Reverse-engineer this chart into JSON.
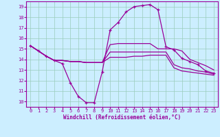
{
  "xlabel": "Windchill (Refroidissement éolien,°C)",
  "background_color": "#cceeff",
  "line_color": "#990099",
  "grid_color": "#99ccbb",
  "ylim": [
    9.5,
    19.5
  ],
  "xlim": [
    -0.5,
    23.5
  ],
  "yticks": [
    10,
    11,
    12,
    13,
    14,
    15,
    16,
    17,
    18,
    19
  ],
  "xticks": [
    0,
    1,
    2,
    3,
    4,
    5,
    6,
    7,
    8,
    9,
    10,
    11,
    12,
    13,
    14,
    15,
    16,
    17,
    18,
    19,
    20,
    21,
    22,
    23
  ],
  "series": [
    {
      "x": [
        0,
        1,
        2,
        3,
        4,
        5,
        6,
        7,
        8,
        9,
        10,
        11,
        12,
        13,
        14,
        15,
        16,
        17,
        18,
        19,
        20,
        21,
        22,
        23
      ],
      "y": [
        15.3,
        14.8,
        14.3,
        13.9,
        13.9,
        13.8,
        13.8,
        13.7,
        13.7,
        13.7,
        15.4,
        15.5,
        15.5,
        15.5,
        15.5,
        15.5,
        15.0,
        15.0,
        15.0,
        14.8,
        14.0,
        13.7,
        13.4,
        13.0
      ],
      "marker": null,
      "lw": 0.9
    },
    {
      "x": [
        0,
        1,
        2,
        3,
        4,
        5,
        6,
        7,
        8,
        9,
        10,
        11,
        12,
        13,
        14,
        15,
        16,
        17,
        18,
        19,
        20,
        21,
        22,
        23
      ],
      "y": [
        15.3,
        14.8,
        14.3,
        13.9,
        13.6,
        11.8,
        10.5,
        9.9,
        9.9,
        12.8,
        16.8,
        17.5,
        18.5,
        19.0,
        19.1,
        19.2,
        18.7,
        15.2,
        14.9,
        14.1,
        13.8,
        13.5,
        12.9,
        12.7
      ],
      "marker": "+",
      "lw": 0.9
    },
    {
      "x": [
        0,
        1,
        2,
        3,
        4,
        5,
        6,
        7,
        8,
        9,
        10,
        11,
        12,
        13,
        14,
        15,
        16,
        17,
        18,
        19,
        20,
        21,
        22,
        23
      ],
      "y": [
        15.3,
        14.8,
        14.3,
        13.9,
        13.9,
        13.8,
        13.8,
        13.7,
        13.7,
        13.7,
        14.7,
        14.7,
        14.7,
        14.7,
        14.7,
        14.7,
        14.7,
        14.7,
        13.5,
        13.2,
        13.1,
        12.9,
        12.8,
        12.6
      ],
      "marker": null,
      "lw": 0.9
    },
    {
      "x": [
        0,
        1,
        2,
        3,
        4,
        5,
        6,
        7,
        8,
        9,
        10,
        11,
        12,
        13,
        14,
        15,
        16,
        17,
        18,
        19,
        20,
        21,
        22,
        23
      ],
      "y": [
        15.3,
        14.8,
        14.3,
        13.9,
        13.9,
        13.8,
        13.8,
        13.7,
        13.7,
        13.7,
        14.2,
        14.2,
        14.2,
        14.3,
        14.3,
        14.4,
        14.4,
        14.4,
        13.2,
        12.9,
        12.8,
        12.7,
        12.6,
        12.5
      ],
      "marker": null,
      "lw": 0.9
    }
  ]
}
